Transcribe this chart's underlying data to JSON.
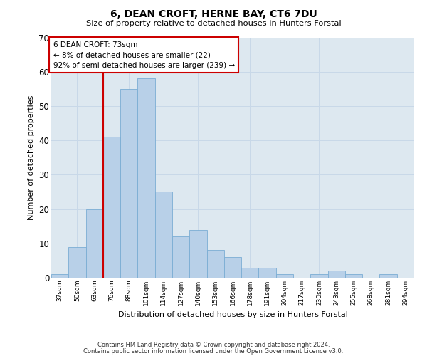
{
  "title": "6, DEAN CROFT, HERNE BAY, CT6 7DU",
  "subtitle": "Size of property relative to detached houses in Hunters Forstal",
  "xlabel": "Distribution of detached houses by size in Hunters Forstal",
  "ylabel": "Number of detached properties",
  "categories": [
    "37sqm",
    "50sqm",
    "63sqm",
    "76sqm",
    "88sqm",
    "101sqm",
    "114sqm",
    "127sqm",
    "140sqm",
    "153sqm",
    "166sqm",
    "178sqm",
    "191sqm",
    "204sqm",
    "217sqm",
    "230sqm",
    "243sqm",
    "255sqm",
    "268sqm",
    "281sqm",
    "294sqm"
  ],
  "values": [
    1,
    9,
    20,
    41,
    55,
    58,
    25,
    12,
    14,
    8,
    6,
    3,
    3,
    1,
    0,
    1,
    2,
    1,
    0,
    1,
    0
  ],
  "bar_color": "#b8d0e8",
  "bar_edge_color": "#7aadd4",
  "vline_color": "#cc0000",
  "annotation_text": "6 DEAN CROFT: 73sqm\n← 8% of detached houses are smaller (22)\n92% of semi-detached houses are larger (239) →",
  "annotation_box_color": "#ffffff",
  "annotation_box_edge": "#cc0000",
  "grid_color": "#c8d8e8",
  "background_color": "#dde8f0",
  "ylim": [
    0,
    70
  ],
  "footer1": "Contains HM Land Registry data © Crown copyright and database right 2024.",
  "footer2": "Contains public sector information licensed under the Open Government Licence v3.0."
}
